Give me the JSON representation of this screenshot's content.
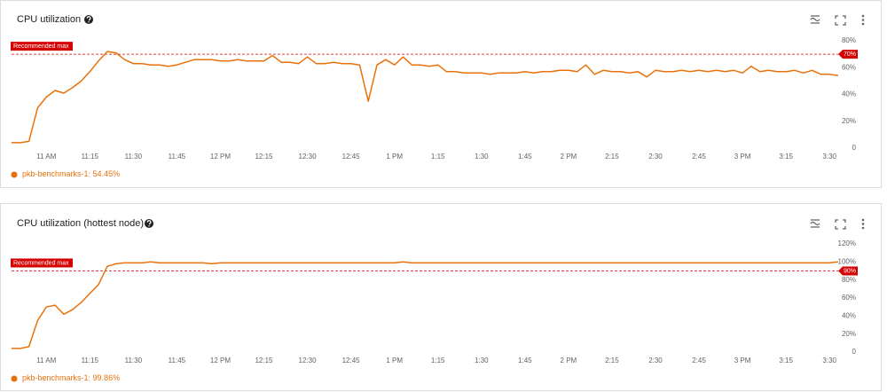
{
  "chart_data": [
    {
      "type": "line",
      "title": "CPU utilization",
      "categories": [
        null,
        null,
        null,
        null,
        "11 AM",
        null,
        null,
        null,
        null,
        "11:15",
        null,
        null,
        null,
        null,
        "11:30",
        null,
        null,
        null,
        null,
        "11:45",
        null,
        null,
        null,
        null,
        "12 PM",
        null,
        null,
        null,
        null,
        "12:15",
        null,
        null,
        null,
        null,
        "12:30",
        null,
        null,
        null,
        null,
        "12:45",
        null,
        null,
        null,
        null,
        "1 PM",
        null,
        null,
        null,
        null,
        "1:15",
        null,
        null,
        null,
        null,
        "1:30",
        null,
        null,
        null,
        null,
        "1:45",
        null,
        null,
        null,
        null,
        "2 PM",
        null,
        null,
        null,
        null,
        "2:15",
        null,
        null,
        null,
        null,
        "2:30",
        null,
        null,
        null,
        null,
        "2:45",
        null,
        null,
        null,
        null,
        "3 PM",
        null,
        null,
        null,
        null,
        "3:15",
        null,
        null,
        null,
        null,
        "3:30",
        null
      ],
      "series": [
        {
          "name": "pkb-benchmarks-1",
          "legend_value": "54.45%",
          "color": "#e8710a",
          "values": [
            4,
            4,
            5,
            30,
            38,
            43,
            41,
            45,
            50,
            57,
            65,
            72,
            71,
            66,
            63,
            63,
            62,
            62,
            61,
            62,
            64,
            66,
            66,
            66,
            65,
            65,
            66,
            65,
            65,
            65,
            69,
            64,
            64,
            63,
            68,
            63,
            63,
            64,
            63,
            63,
            62,
            35,
            62,
            66,
            62,
            68,
            62,
            62,
            61,
            62,
            57,
            57,
            56,
            56,
            56,
            55,
            56,
            56,
            56,
            57,
            56,
            57,
            57,
            58,
            58,
            57,
            62,
            55,
            58,
            57,
            57,
            56,
            57,
            53,
            58,
            57,
            57,
            58,
            57,
            58,
            57,
            58,
            57,
            58,
            56,
            61,
            57,
            58,
            57,
            57,
            58,
            56,
            58,
            55,
            55,
            54
          ]
        }
      ],
      "ylim": [
        0,
        80
      ],
      "yticks": [
        0,
        {
          "value": 20,
          "label": "20%"
        },
        {
          "value": 40,
          "label": "40%"
        },
        {
          "value": 60,
          "label": "60%"
        },
        {
          "value": 80,
          "label": "80%"
        }
      ],
      "threshold": {
        "label": "Recommended max",
        "value": 70,
        "value_label": "70%",
        "color": "#d50000"
      },
      "grid": false
    },
    {
      "type": "line",
      "title": "CPU utilization (hottest node)",
      "categories": [
        null,
        null,
        null,
        null,
        "11 AM",
        null,
        null,
        null,
        null,
        "11:15",
        null,
        null,
        null,
        null,
        "11:30",
        null,
        null,
        null,
        null,
        "11:45",
        null,
        null,
        null,
        null,
        "12 PM",
        null,
        null,
        null,
        null,
        "12:15",
        null,
        null,
        null,
        null,
        "12:30",
        null,
        null,
        null,
        null,
        "12:45",
        null,
        null,
        null,
        null,
        "1 PM",
        null,
        null,
        null,
        null,
        "1:15",
        null,
        null,
        null,
        null,
        "1:30",
        null,
        null,
        null,
        null,
        "1:45",
        null,
        null,
        null,
        null,
        "2 PM",
        null,
        null,
        null,
        null,
        "2:15",
        null,
        null,
        null,
        null,
        "2:30",
        null,
        null,
        null,
        null,
        "2:45",
        null,
        null,
        null,
        null,
        "3 PM",
        null,
        null,
        null,
        null,
        "3:15",
        null,
        null,
        null,
        null,
        "3:30",
        null
      ],
      "series": [
        {
          "name": "pkb-benchmarks-1",
          "legend_value": "99.86%",
          "color": "#e8710a",
          "values": [
            4,
            4,
            6,
            35,
            50,
            52,
            42,
            47,
            55,
            65,
            75,
            95,
            98,
            99,
            99,
            99,
            100,
            99,
            99,
            99,
            99,
            99,
            99,
            98,
            99,
            99,
            99,
            99,
            99,
            99,
            99,
            99,
            99,
            99,
            99,
            99,
            99,
            99,
            99,
            99,
            99,
            99,
            99,
            99,
            99,
            100,
            99,
            99,
            99,
            99,
            99,
            99,
            99,
            99,
            99,
            99,
            99,
            99,
            99,
            99,
            99,
            99,
            99,
            99,
            99,
            99,
            99,
            99,
            99,
            99,
            99,
            99,
            99,
            99,
            99,
            99,
            99,
            99,
            99,
            99,
            99,
            99,
            99,
            99,
            99,
            99,
            99,
            99,
            99,
            99,
            99,
            99,
            99,
            99,
            99,
            100
          ]
        }
      ],
      "ylim": [
        0,
        120
      ],
      "yticks": [
        0,
        {
          "value": 20,
          "label": "20%"
        },
        {
          "value": 40,
          "label": "40%"
        },
        {
          "value": 60,
          "label": "60%"
        },
        {
          "value": 80,
          "label": "80%"
        },
        {
          "value": 100,
          "label": "100%"
        },
        {
          "value": 120,
          "label": "120%"
        }
      ],
      "threshold": {
        "label": "Recommended max",
        "value": 90,
        "value_label": "90%",
        "color": "#d50000"
      },
      "grid": false
    }
  ]
}
